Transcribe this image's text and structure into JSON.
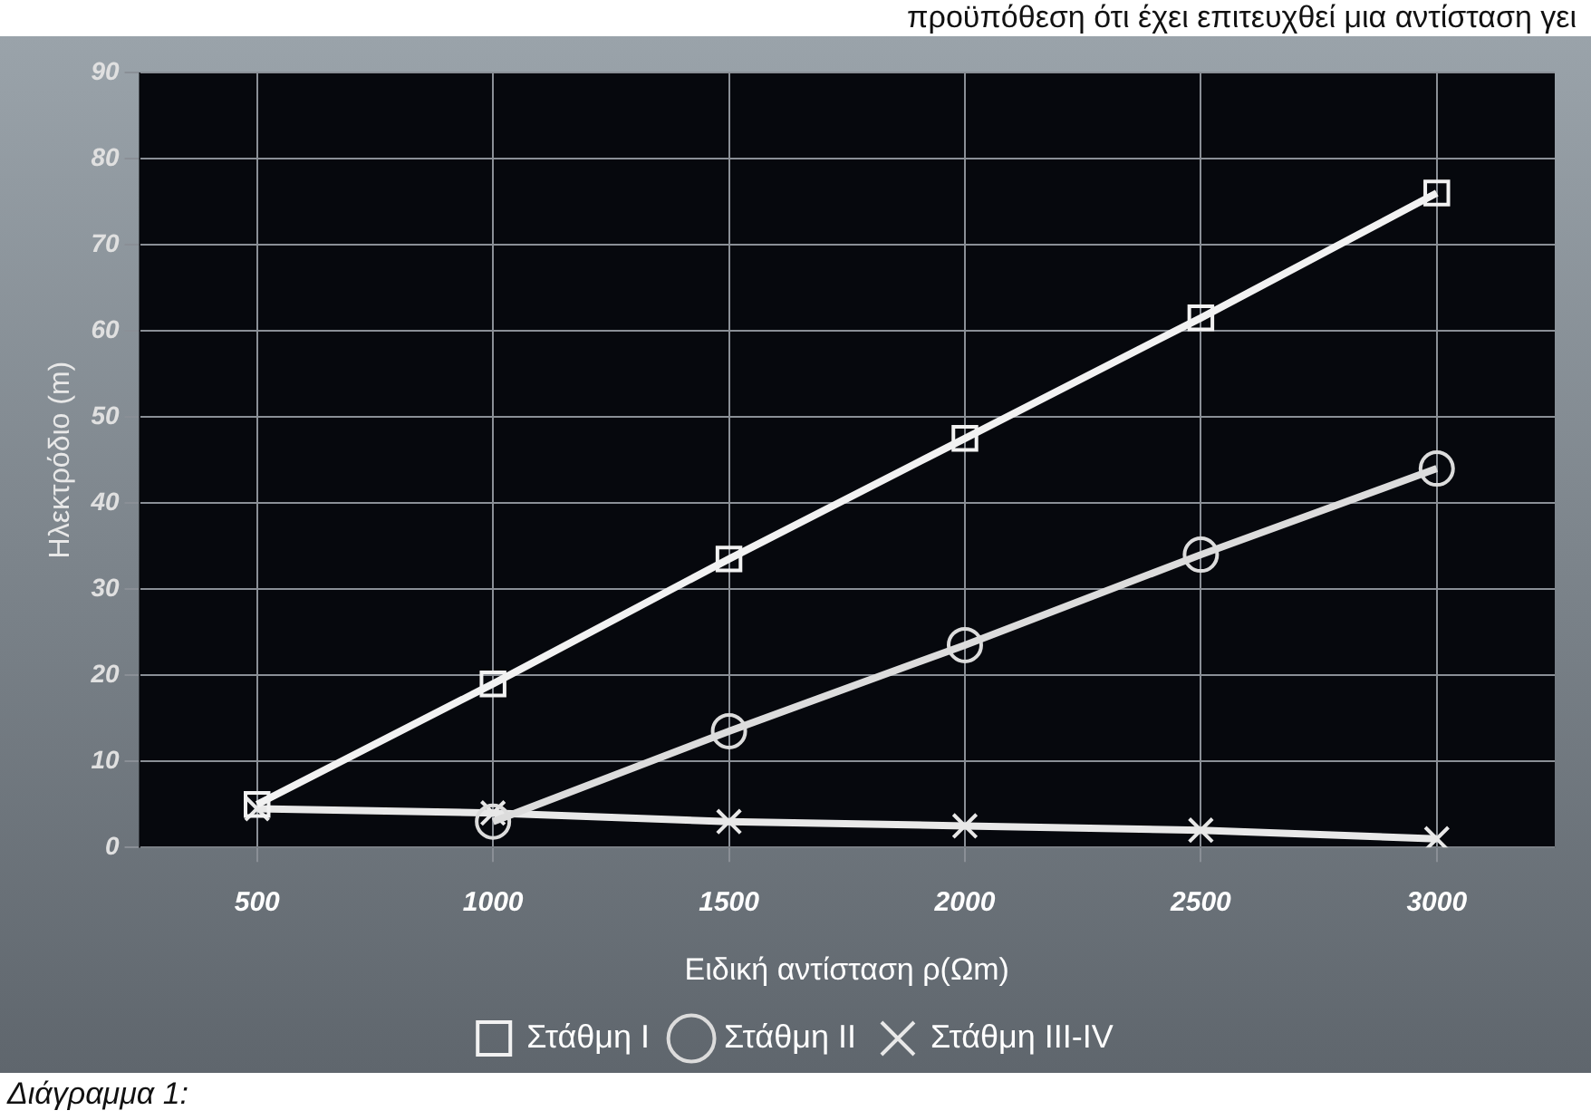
{
  "chart_data": {
    "type": "line",
    "xlabel": "Ειδική αντίσταση ρ(Ωm)",
    "ylabel": "Ηλεκτρόδιο (m)",
    "categories": [
      "500",
      "1000",
      "1500",
      "2000",
      "2500",
      "3000"
    ],
    "series": [
      {
        "name": "Στάθμη I",
        "color": "#f2f2f2",
        "marker": "square",
        "values": [
          5,
          19,
          33.5,
          47.5,
          61.5,
          76
        ]
      },
      {
        "name": "Στάθμη II",
        "color": "#dcdcdc",
        "marker": "circle",
        "values": [
          null,
          3,
          13.5,
          23.5,
          34,
          44
        ]
      },
      {
        "name": "Στάθμη III-IV",
        "color": "#e8e8e8",
        "marker": "cross",
        "values": [
          4.5,
          4,
          3,
          2.5,
          2,
          1
        ]
      }
    ],
    "ylim": [
      0,
      90
    ],
    "yticks": [
      0,
      10,
      20,
      30,
      40,
      50,
      60,
      70,
      80,
      90
    ],
    "grid": true,
    "legend": "bottom",
    "line_style": "solid",
    "annotations": [
      "προϋπόθεση ότι έχει επιτευχθεί μια αντίσταση γει",
      "Διάγραμμα 1:"
    ]
  }
}
